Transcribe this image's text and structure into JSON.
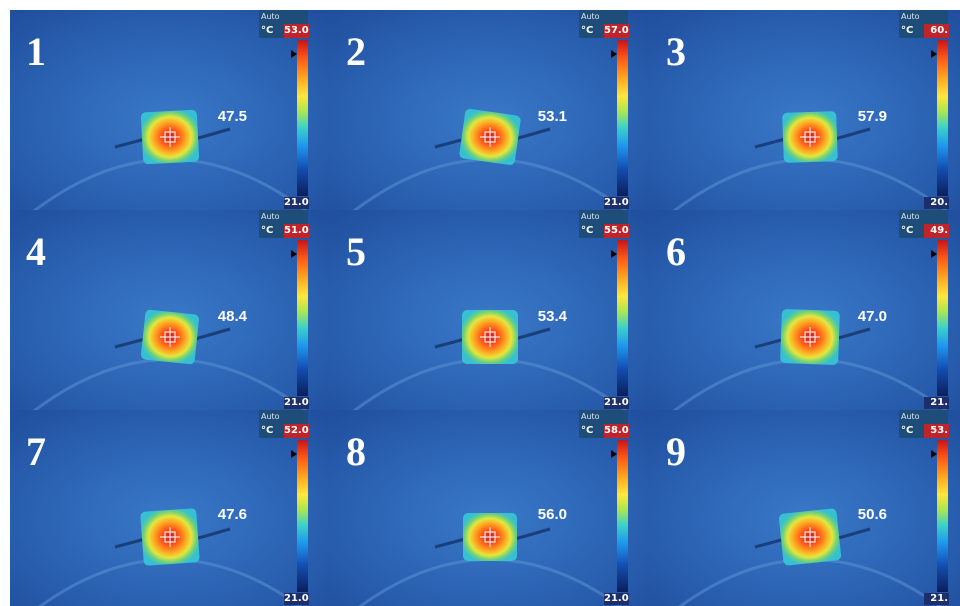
{
  "auto_label": "Auto",
  "unit_label": "°C",
  "colors": {
    "background": "#2d63b4",
    "scale_header": "#1d4d78",
    "scale_max": "#c0242b",
    "scale_min": "#1d2f6a"
  },
  "panels": [
    {
      "label": "1",
      "scale_max": "53.0",
      "scale_min": "21.0",
      "spot_temp": "47.5"
    },
    {
      "label": "2",
      "scale_max": "57.0",
      "scale_min": "21.0",
      "spot_temp": "53.1"
    },
    {
      "label": "3",
      "scale_max": "60.",
      "scale_min": "20.",
      "spot_temp": "57.9"
    },
    {
      "label": "4",
      "scale_max": "51.0",
      "scale_min": "21.0",
      "spot_temp": "48.4"
    },
    {
      "label": "5",
      "scale_max": "55.0",
      "scale_min": "21.0",
      "spot_temp": "53.4"
    },
    {
      "label": "6",
      "scale_max": "49.",
      "scale_min": "21.",
      "spot_temp": "47.0"
    },
    {
      "label": "7",
      "scale_max": "52.0",
      "scale_min": "21.0",
      "spot_temp": "47.6"
    },
    {
      "label": "8",
      "scale_max": "58.0",
      "scale_min": "21.0",
      "spot_temp": "56.0"
    },
    {
      "label": "9",
      "scale_max": "53.",
      "scale_min": "21.",
      "spot_temp": "50.6"
    }
  ]
}
